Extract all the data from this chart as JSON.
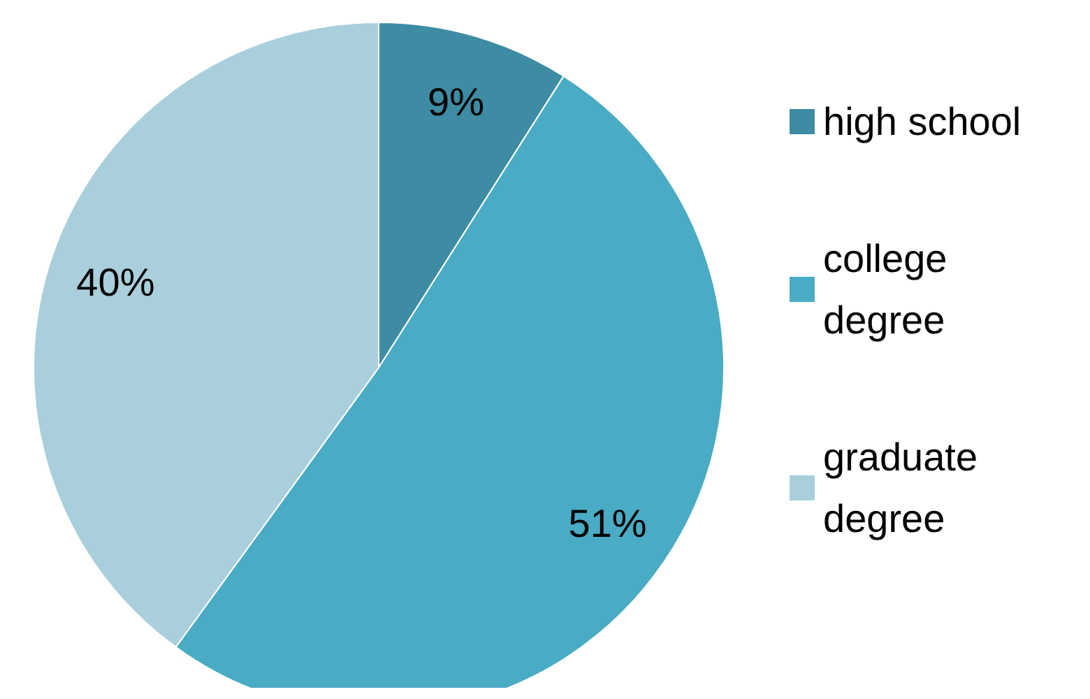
{
  "chart_data": {
    "type": "pie",
    "categories": [
      "high school",
      "college degree",
      "graduate degree"
    ],
    "values": [
      9,
      51,
      40
    ],
    "colors": [
      "#3d8ca3",
      "#4aabc4",
      "#a9cfdc"
    ],
    "value_labels": [
      "9%",
      "51%",
      "40%"
    ],
    "legend": "right"
  }
}
